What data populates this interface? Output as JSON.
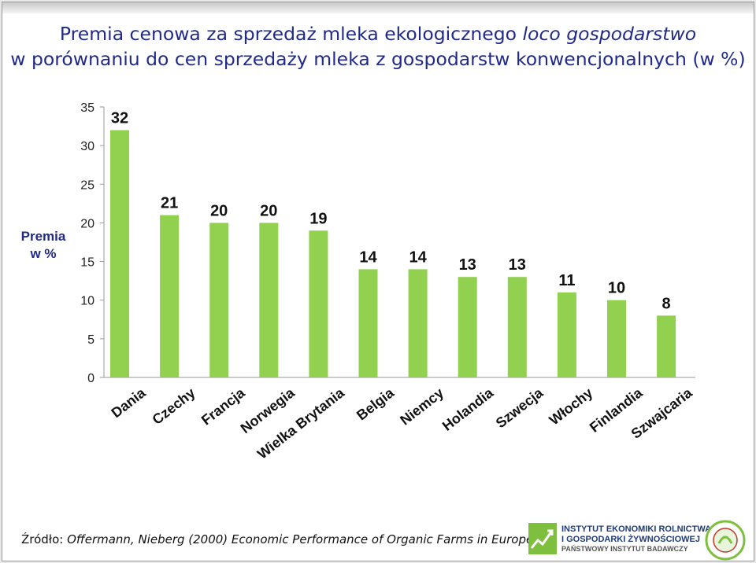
{
  "title_line1_normal": "Premia cenowa za sprzedaż mleka ekologicznego ",
  "title_line1_italic": "loco gospodarstwo",
  "title_line2": "w porównaniu do cen sprzedaży mleka z gospodarstw konwencjonalnych (w %)",
  "source_prefix": "Źródło: ",
  "source_italic": "Offermann, Nieberg (2000) Economic Performance of Organic Farms in Europe.",
  "logo": {
    "line1": "INSTYTUT EKONOMIKI ROLNICTWA",
    "line2": "I GOSPODARKI ŻYWNOŚCIOWEJ",
    "line3": "PAŃSTWOWY INSTYTUT BADAWCZY",
    "seal_text": "PROGRAM WIELOLETNI 2011 - 2014"
  },
  "colors": {
    "bar": "#92d050",
    "title": "#1f2a8a",
    "axis": "#9a9a9a"
  },
  "chart_data": {
    "type": "bar",
    "title": "",
    "xlabel": "",
    "ylabel": "Premia w %",
    "ylabel_lines": [
      "Premia",
      "w %"
    ],
    "categories": [
      "Dania",
      "Czechy",
      "Francja",
      "Norwegia",
      "Wielka Brytania",
      "Belgia",
      "Niemcy",
      "Holandia",
      "Szwecja",
      "Włochy",
      "Finlandia",
      "Szwajcaria"
    ],
    "values": [
      32,
      21,
      20,
      20,
      19,
      14,
      14,
      13,
      13,
      11,
      10,
      8
    ],
    "ylim": [
      0,
      35
    ],
    "yticks": [
      0,
      5,
      10,
      15,
      20,
      25,
      30,
      35
    ],
    "grid": false,
    "legend": "none"
  }
}
